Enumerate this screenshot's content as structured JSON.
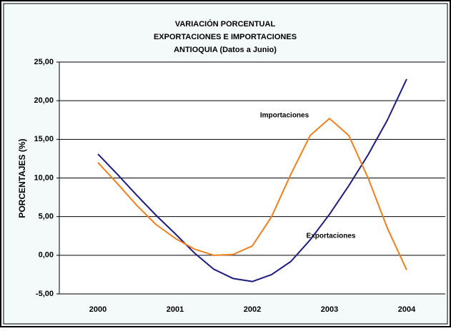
{
  "chart_data": {
    "type": "line",
    "title": [
      "VARIACIÓN PORCENTUAL",
      "EXPORTACIONES E IMPORTACIONES",
      "ANTIOQUIA (Datos a Junio)"
    ],
    "y_label": "PORCENTAJES  (%)",
    "x": [
      2000,
      2000.25,
      2000.5,
      2000.75,
      2001,
      2001.25,
      2001.5,
      2001.75,
      2002,
      2002.25,
      2002.5,
      2002.75,
      2003,
      2003.25,
      2003.5,
      2003.75,
      2004
    ],
    "xlim": [
      1999.5,
      2004.5
    ],
    "xticks": [
      2000,
      2001,
      2002,
      2003,
      2004
    ],
    "ylim": [
      -5,
      25
    ],
    "yticks": [
      {
        "value": -5,
        "label": "-5,00"
      },
      {
        "value": 0,
        "label": "0,00"
      },
      {
        "value": 5,
        "label": "5,00"
      },
      {
        "value": 10,
        "label": "10,00"
      },
      {
        "value": 15,
        "label": "15,00"
      },
      {
        "value": 20,
        "label": "20,00"
      },
      {
        "value": 25,
        "label": "25,00"
      }
    ],
    "grid": true,
    "series": [
      {
        "name": "Exportaciones",
        "color": "#1c1c80",
        "values": [
          13.1,
          10.5,
          7.8,
          5.2,
          2.8,
          0.3,
          -1.8,
          -3.0,
          -3.4,
          -2.5,
          -0.8,
          2.0,
          5.3,
          9.0,
          13.0,
          17.5,
          22.8
        ]
      },
      {
        "name": "Importaciones",
        "color": "#f07f1e",
        "values": [
          12.0,
          9.3,
          6.5,
          4.0,
          2.2,
          0.8,
          0.0,
          0.1,
          1.2,
          5.0,
          10.5,
          15.5,
          17.7,
          15.5,
          10.0,
          3.5,
          -1.9
        ]
      }
    ]
  }
}
